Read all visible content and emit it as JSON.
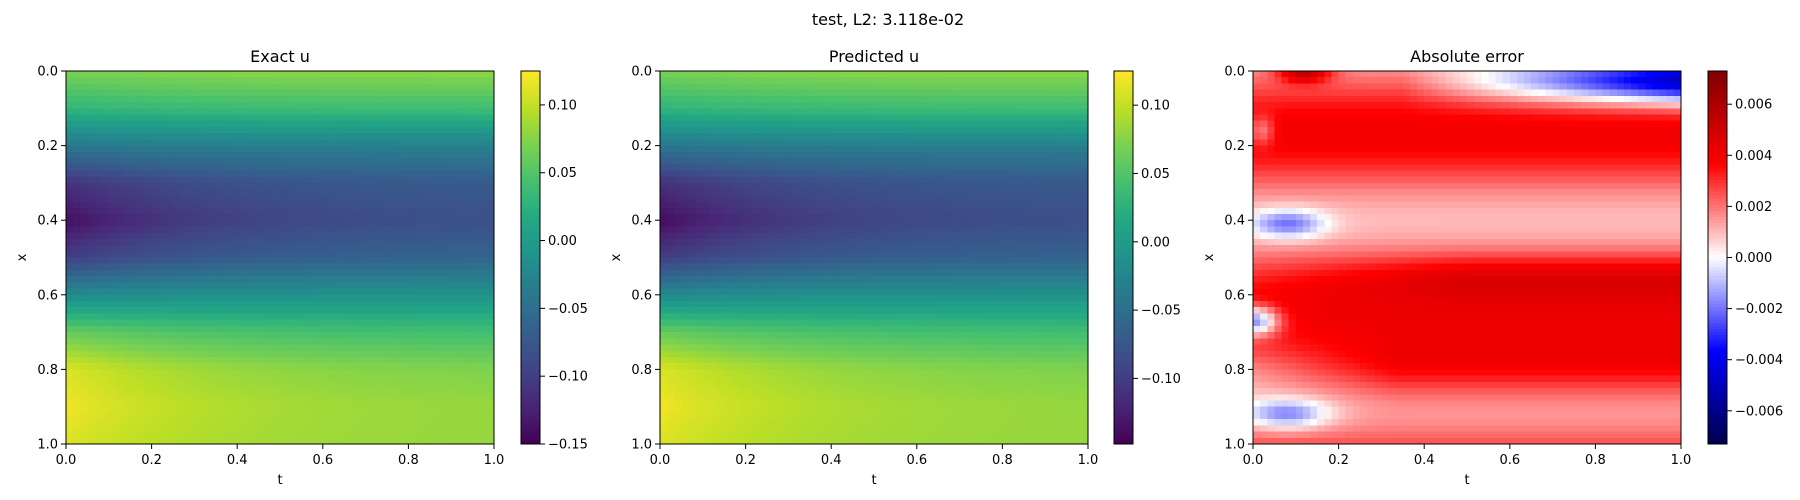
{
  "suptitle": "test, L2: 3.118e-02",
  "chart_data": [
    {
      "type": "heatmap",
      "title": "Exact u",
      "xlabel": "t",
      "ylabel": "x",
      "xlim": [
        0.0,
        1.0
      ],
      "ylim": [
        1.0,
        0.0
      ],
      "xticks": [
        "0.0",
        "0.2",
        "0.4",
        "0.6",
        "0.8",
        "1.0"
      ],
      "yticks": [
        "0.0",
        "0.2",
        "0.4",
        "0.6",
        "0.8",
        "1.0"
      ],
      "colormap": "viridis",
      "clim": [
        -0.15,
        0.125
      ],
      "colorbar_ticks": [
        "0.10",
        "0.05",
        "0.00",
        "−0.05",
        "−0.10",
        "−0.15"
      ],
      "colorbar_tick_values": [
        0.1,
        0.05,
        0.0,
        -0.05,
        -0.1,
        -0.15
      ],
      "field_profile": {
        "x": [
          0.0,
          0.1,
          0.2,
          0.3,
          0.4,
          0.5,
          0.6,
          0.7,
          0.8,
          0.9,
          1.0
        ],
        "u_at_t0": [
          0.07,
          0.03,
          -0.04,
          -0.11,
          -0.14,
          -0.1,
          -0.02,
          0.06,
          0.11,
          0.12,
          0.11
        ],
        "u_at_t1": [
          0.08,
          0.04,
          -0.03,
          -0.07,
          -0.08,
          -0.06,
          -0.01,
          0.04,
          0.07,
          0.08,
          0.08
        ]
      }
    },
    {
      "type": "heatmap",
      "title": "Predicted u",
      "xlabel": "t",
      "ylabel": "x",
      "xlim": [
        0.0,
        1.0
      ],
      "ylim": [
        1.0,
        0.0
      ],
      "xticks": [
        "0.0",
        "0.2",
        "0.4",
        "0.6",
        "0.8",
        "1.0"
      ],
      "yticks": [
        "0.0",
        "0.2",
        "0.4",
        "0.6",
        "0.8",
        "1.0"
      ],
      "colormap": "viridis",
      "clim": [
        -0.148,
        0.125
      ],
      "colorbar_ticks": [
        "0.10",
        "0.05",
        "0.00",
        "−0.05",
        "−0.10"
      ],
      "colorbar_tick_values": [
        0.1,
        0.05,
        0.0,
        -0.05,
        -0.1
      ],
      "field_profile": {
        "x": [
          0.0,
          0.1,
          0.2,
          0.3,
          0.4,
          0.5,
          0.6,
          0.7,
          0.8,
          0.9,
          1.0
        ],
        "u_at_t0": [
          0.07,
          0.03,
          -0.04,
          -0.11,
          -0.14,
          -0.1,
          -0.02,
          0.06,
          0.11,
          0.12,
          0.11
        ],
        "u_at_t1": [
          0.08,
          0.04,
          -0.03,
          -0.07,
          -0.08,
          -0.06,
          -0.01,
          0.04,
          0.07,
          0.08,
          0.08
        ]
      }
    },
    {
      "type": "heatmap",
      "title": "Absolute error",
      "xlabel": "t",
      "ylabel": "x",
      "xlim": [
        0.0,
        1.0
      ],
      "ylim": [
        1.0,
        0.0
      ],
      "xticks": [
        "0.0",
        "0.2",
        "0.4",
        "0.6",
        "0.8",
        "1.0"
      ],
      "yticks": [
        "0.0",
        "0.2",
        "0.4",
        "0.6",
        "0.8",
        "1.0"
      ],
      "colormap": "seismic",
      "clim": [
        -0.0073,
        0.0073
      ],
      "colorbar_ticks": [
        "0.006",
        "0.004",
        "0.002",
        "0.000",
        "−0.002",
        "−0.004",
        "−0.006"
      ],
      "colorbar_tick_values": [
        0.006,
        0.004,
        0.002,
        0.0,
        -0.002,
        -0.004,
        -0.006
      ]
    }
  ]
}
